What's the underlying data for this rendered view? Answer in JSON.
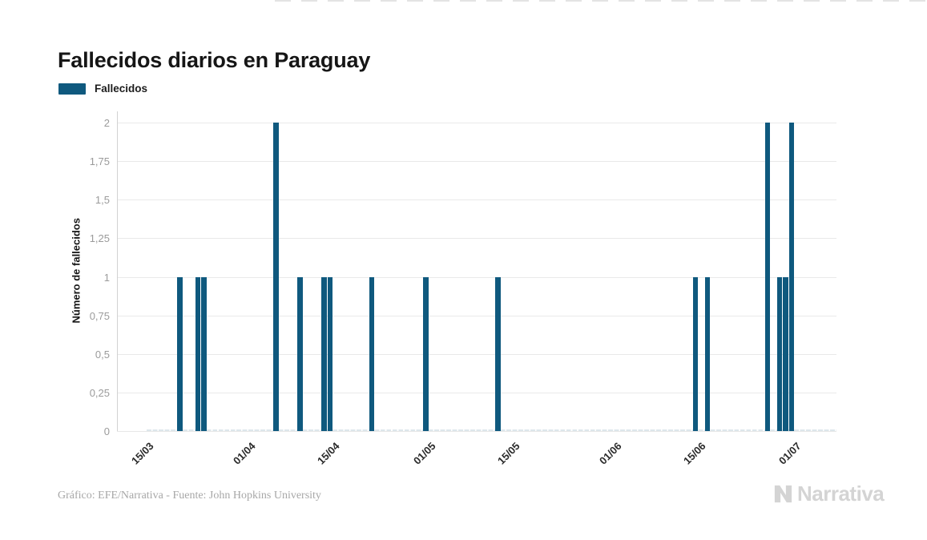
{
  "title": "Fallecidos diarios en Paraguay",
  "legend": {
    "label": "Fallecidos"
  },
  "footer": {
    "credit": "Gráfico: EFE/Narrativa - Fuente: John Hopkins University",
    "brand": "Narrativa"
  },
  "colors": {
    "bar": "#0f597e",
    "grid": "#e9e9e9",
    "axis": "#d2d2d2",
    "ytick_text": "#9b9b9b",
    "xtick_text": "#2a2a2a",
    "zero_dash": "#dde7ec",
    "brand": "#d4d4d4"
  },
  "chart_data": {
    "type": "bar",
    "title": "Fallecidos diarios en Paraguay",
    "xlabel": "",
    "ylabel": "Número de fallecidos",
    "ylim": [
      0,
      2
    ],
    "ytick_step": 0.25,
    "ytick_labels": [
      "0",
      "0,25",
      "0,5",
      "0,75",
      "1",
      "1,25",
      "1,5",
      "1,75",
      "2"
    ],
    "grid": true,
    "legend_position": "top-left",
    "x_axis": {
      "start_date": "10/03/2020",
      "end_date": "08/07/2020",
      "total_days": 120,
      "series_zero_span": {
        "from_day": 5,
        "to_day": 120
      }
    },
    "xticks": [
      {
        "label": "15/03",
        "day": 5
      },
      {
        "label": "01/04",
        "day": 22
      },
      {
        "label": "15/04",
        "day": 36
      },
      {
        "label": "01/05",
        "day": 52
      },
      {
        "label": "15/05",
        "day": 66
      },
      {
        "label": "01/06",
        "day": 83
      },
      {
        "label": "15/06",
        "day": 97
      },
      {
        "label": "01/07",
        "day": 113
      }
    ],
    "series": [
      {
        "name": "Fallecidos",
        "color": "#0f597e",
        "points": [
          {
            "date": "20/03/2020",
            "day": 10,
            "value": 1
          },
          {
            "date": "23/03/2020",
            "day": 13,
            "value": 1
          },
          {
            "date": "24/03/2020",
            "day": 14,
            "value": 1
          },
          {
            "date": "05/04/2020",
            "day": 26,
            "value": 2
          },
          {
            "date": "09/04/2020",
            "day": 30,
            "value": 1
          },
          {
            "date": "13/04/2020",
            "day": 34,
            "value": 1
          },
          {
            "date": "14/04/2020",
            "day": 35,
            "value": 1
          },
          {
            "date": "21/04/2020",
            "day": 42,
            "value": 1
          },
          {
            "date": "30/04/2020",
            "day": 51,
            "value": 1
          },
          {
            "date": "12/05/2020",
            "day": 63,
            "value": 1
          },
          {
            "date": "14/06/2020",
            "day": 96,
            "value": 1
          },
          {
            "date": "16/06/2020",
            "day": 98,
            "value": 1
          },
          {
            "date": "26/06/2020",
            "day": 108,
            "value": 2
          },
          {
            "date": "28/06/2020",
            "day": 110,
            "value": 1
          },
          {
            "date": "29/06/2020",
            "day": 111,
            "value": 1
          },
          {
            "date": "30/06/2020",
            "day": 112,
            "value": 2
          }
        ]
      }
    ]
  }
}
